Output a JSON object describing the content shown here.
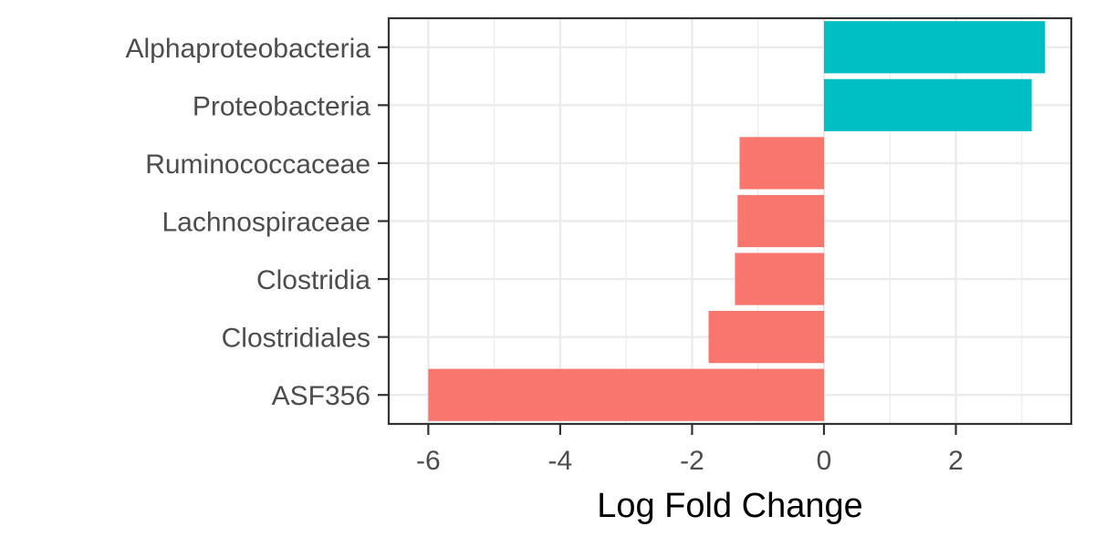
{
  "chart_data": {
    "type": "bar",
    "orientation": "horizontal",
    "title": "",
    "xlabel": "Log Fold Change",
    "ylabel": "",
    "xlim": [
      -6.6,
      3.75
    ],
    "x_ticks": [
      -6,
      -4,
      -2,
      0,
      2
    ],
    "x_tick_labels": [
      "-6",
      "-4",
      "-2",
      "0",
      "2"
    ],
    "grid": true,
    "legend": "none",
    "categories": [
      "Alphaproteobacteria",
      "Proteobacteria",
      "Ruminococcaceae",
      "Lachnospiraceae",
      "Clostridia",
      "Clostridiales",
      "ASF356"
    ],
    "values": [
      3.35,
      3.15,
      -1.28,
      -1.31,
      -1.35,
      -1.75,
      -6.0
    ],
    "colors": {
      "positive": "#00BFC4",
      "negative": "#F8766D",
      "grid": "#ebebeb",
      "panel_border": "#333333",
      "tick": "#333333"
    }
  }
}
